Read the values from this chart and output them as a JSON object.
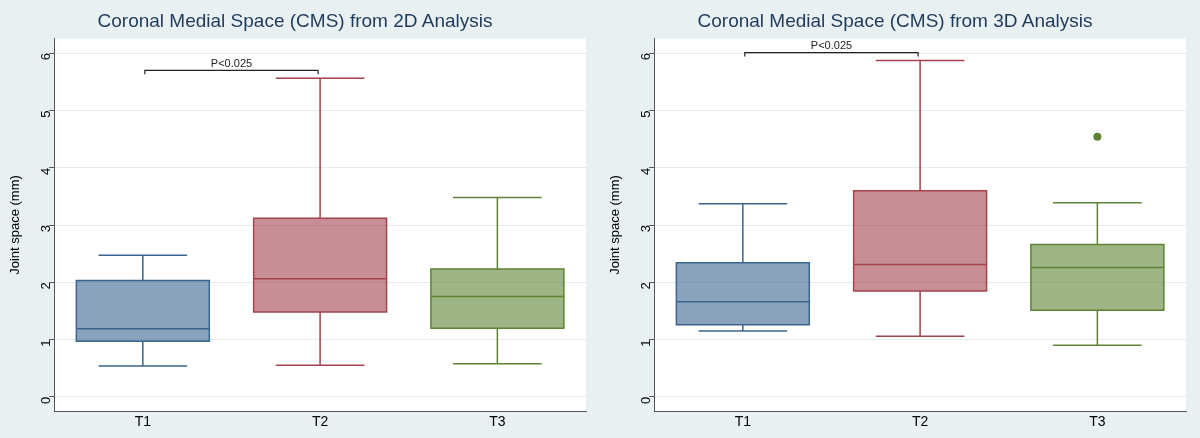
{
  "chart_data": [
    {
      "type": "box",
      "title": "Coronal Medial Space (CMS) from 2D Analysis",
      "ylabel": "Joint space (mm)",
      "categories": [
        "T1",
        "T2",
        "T3"
      ],
      "colors": [
        "#3b6590",
        "#a4434e",
        "#5e8333"
      ],
      "boxes": [
        {
          "low": 0.54,
          "q1": 0.97,
          "median": 1.19,
          "q3": 2.03,
          "high": 2.47
        },
        {
          "low": 0.55,
          "q1": 1.48,
          "median": 2.06,
          "q3": 3.12,
          "high": 5.56
        },
        {
          "low": 0.58,
          "q1": 1.2,
          "median": 1.75,
          "q3": 2.23,
          "high": 3.48
        }
      ],
      "ylim": [
        -0.25,
        6.25
      ],
      "yticks": [
        0,
        1,
        2,
        3,
        4,
        5,
        6
      ],
      "grid": "y",
      "legend": false,
      "annotations": [
        "P<0.025"
      ]
    },
    {
      "type": "box",
      "title": "Coronal Medial Space (CMS) from 3D Analysis",
      "ylabel": "Joint space (mm)",
      "categories": [
        "T1",
        "T2",
        "T3"
      ],
      "colors": [
        "#3b6590",
        "#a4434e",
        "#5e8333"
      ],
      "boxes": [
        {
          "low": 1.15,
          "q1": 1.26,
          "median": 1.66,
          "q3": 2.34,
          "high": 3.37
        },
        {
          "low": 1.06,
          "q1": 1.85,
          "median": 2.31,
          "q3": 3.6,
          "high": 5.87
        },
        {
          "low": 0.9,
          "q1": 1.51,
          "median": 2.26,
          "q3": 2.66,
          "high": 3.39,
          "outliers": [
            4.54
          ]
        }
      ],
      "ylim": [
        -0.25,
        6.25
      ],
      "yticks": [
        0,
        1,
        2,
        3,
        4,
        5,
        6
      ],
      "grid": "y",
      "legend": false,
      "annotations": [
        "P<0.025"
      ]
    }
  ]
}
